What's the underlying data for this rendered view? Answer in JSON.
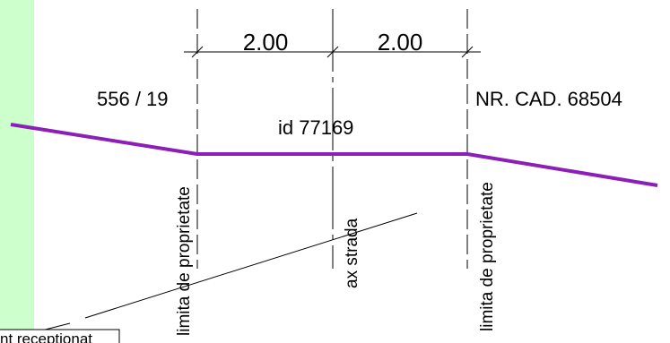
{
  "colors": {
    "strip": "#ccffcc",
    "profile": "#8b1fb8",
    "lines": "#000000",
    "background": "#ffffff"
  },
  "dimensions": {
    "left_width": "2.00",
    "right_width": "2.00"
  },
  "parcels": {
    "left_parcel": "556 / 19",
    "center_parcel": "id 77169",
    "right_parcel": "NR. CAD. 68504"
  },
  "axes": {
    "left_boundary": "limita de proprietate",
    "center_axis": "ax strada",
    "right_boundary": "limita de proprietate"
  },
  "bottom_note": "nt receptionat"
}
